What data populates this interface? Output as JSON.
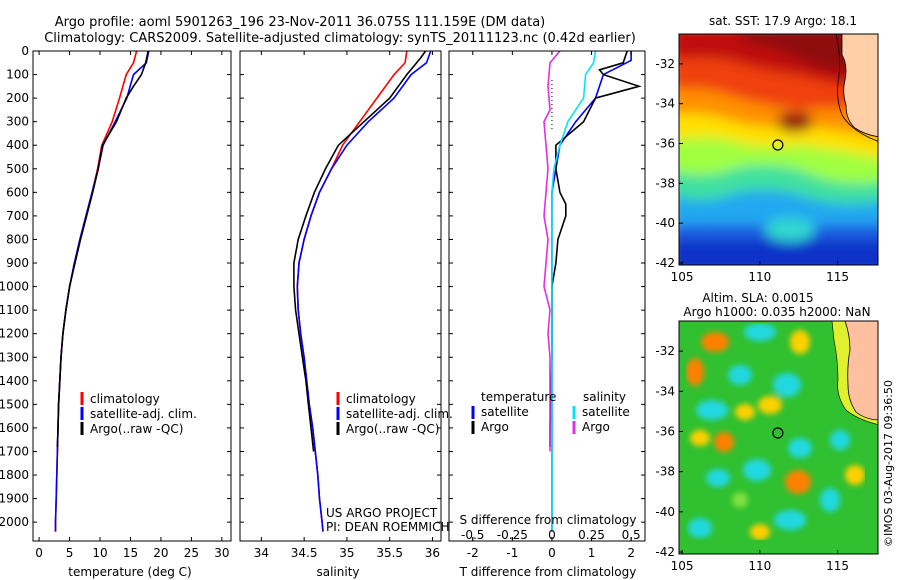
{
  "header": {
    "line1": "Argo profile: aoml 5901263_196 23-Nov-2011 36.075S 111.159E (DM data)",
    "line2": "Climatology: CARS2009. Satellite-adjusted climatology: synTS_20111123.nc (0.42d earlier)"
  },
  "colors": {
    "climatology": "#ff0000",
    "satellite": "#0000ff",
    "argo": "#000000",
    "salinity_sat": "#00e5ff",
    "salinity_argo": "#e030e0"
  },
  "chart_data": [
    {
      "type": "line",
      "id": "temperature",
      "xlabel": "temperature (deg C)",
      "ylabel": "",
      "xlim": [
        -1,
        31.5
      ],
      "ylim": [
        2080,
        0
      ],
      "xticks": [
        0,
        5,
        10,
        15,
        20,
        25,
        30
      ],
      "yticks": [
        0,
        100,
        200,
        300,
        400,
        500,
        600,
        700,
        800,
        900,
        1000,
        1100,
        1200,
        1300,
        1400,
        1500,
        1600,
        1700,
        1800,
        1900,
        2000
      ],
      "legend": {
        "position": "lower-center",
        "entries": [
          "climatology",
          "satellite-adj. clim.",
          "Argo(..raw -QC)"
        ]
      },
      "series": [
        {
          "name": "climatology",
          "color": "#ff0000",
          "points": [
            [
              16.0,
              0
            ],
            [
              15.5,
              50
            ],
            [
              14.3,
              100
            ],
            [
              13.2,
              200
            ],
            [
              12.0,
              300
            ],
            [
              10.3,
              400
            ],
            [
              9.6,
              500
            ],
            [
              8.7,
              600
            ],
            [
              7.7,
              700
            ],
            [
              6.7,
              800
            ],
            [
              5.8,
              900
            ],
            [
              5.0,
              1000
            ],
            [
              4.4,
              1100
            ],
            [
              3.9,
              1200
            ],
            [
              3.6,
              1300
            ],
            [
              3.4,
              1400
            ],
            [
              3.2,
              1500
            ],
            [
              3.1,
              1600
            ],
            [
              3.0,
              1700
            ],
            [
              2.9,
              1800
            ],
            [
              2.8,
              1900
            ],
            [
              2.7,
              2000
            ],
            [
              2.7,
              2040
            ]
          ]
        },
        {
          "name": "satellite-adj. clim.",
          "color": "#0000ff",
          "points": [
            [
              18.0,
              0
            ],
            [
              17.6,
              50
            ],
            [
              15.5,
              100
            ],
            [
              14.4,
              200
            ],
            [
              12.5,
              300
            ],
            [
              10.5,
              400
            ],
            [
              9.7,
              500
            ],
            [
              8.7,
              600
            ],
            [
              7.7,
              700
            ],
            [
              6.7,
              800
            ],
            [
              5.8,
              900
            ],
            [
              5.0,
              1000
            ],
            [
              4.4,
              1100
            ],
            [
              3.9,
              1200
            ],
            [
              3.6,
              1300
            ],
            [
              3.4,
              1400
            ],
            [
              3.2,
              1500
            ],
            [
              3.1,
              1600
            ],
            [
              3.0,
              1700
            ],
            [
              2.9,
              1800
            ],
            [
              2.8,
              1900
            ],
            [
              2.7,
              2000
            ],
            [
              2.7,
              2040
            ]
          ]
        },
        {
          "name": "Argo(..raw -QC)",
          "color": "#000000",
          "points": [
            [
              17.9,
              0
            ],
            [
              17.5,
              50
            ],
            [
              16.8,
              100
            ],
            [
              15.5,
              150
            ],
            [
              14.3,
              200
            ],
            [
              12.7,
              300
            ],
            [
              10.4,
              400
            ],
            [
              9.7,
              500
            ],
            [
              8.8,
              600
            ],
            [
              7.8,
              700
            ],
            [
              6.8,
              800
            ],
            [
              5.9,
              900
            ],
            [
              5.0,
              1000
            ],
            [
              4.4,
              1100
            ],
            [
              3.9,
              1200
            ],
            [
              3.6,
              1300
            ],
            [
              3.4,
              1400
            ],
            [
              3.2,
              1500
            ],
            [
              3.1,
              1600
            ],
            [
              3.0,
              1680
            ]
          ]
        }
      ]
    },
    {
      "type": "line",
      "id": "salinity",
      "xlabel": "salinity",
      "ylabel": "",
      "xlim": [
        33.75,
        36.1
      ],
      "ylim": [
        2080,
        0
      ],
      "xticks": [
        34,
        34.5,
        35,
        35.5,
        36
      ],
      "legend": {
        "position": "lower-center",
        "entries": [
          "climatology",
          "satellite-adj. clim.",
          "Argo(..raw -QC)"
        ]
      },
      "annotation": [
        "US ARGO PROJECT",
        "PI: DEAN ROEMMICH"
      ],
      "series": [
        {
          "name": "climatology",
          "color": "#ff0000",
          "points": [
            [
              35.7,
              0
            ],
            [
              35.68,
              50
            ],
            [
              35.55,
              100
            ],
            [
              35.35,
              200
            ],
            [
              35.15,
              300
            ],
            [
              34.95,
              400
            ],
            [
              34.82,
              500
            ],
            [
              34.68,
              600
            ],
            [
              34.58,
              700
            ],
            [
              34.5,
              800
            ],
            [
              34.44,
              900
            ],
            [
              34.42,
              1000
            ],
            [
              34.43,
              1100
            ],
            [
              34.46,
              1200
            ],
            [
              34.5,
              1300
            ],
            [
              34.53,
              1400
            ],
            [
              34.56,
              1500
            ],
            [
              34.6,
              1600
            ],
            [
              34.63,
              1700
            ],
            [
              34.66,
              1800
            ],
            [
              34.68,
              1900
            ],
            [
              34.71,
              2000
            ],
            [
              34.72,
              2040
            ]
          ]
        },
        {
          "name": "satellite-adj. clim.",
          "color": "#0000ff",
          "points": [
            [
              35.98,
              0
            ],
            [
              35.93,
              50
            ],
            [
              35.75,
              100
            ],
            [
              35.55,
              200
            ],
            [
              35.25,
              300
            ],
            [
              35.0,
              400
            ],
            [
              34.82,
              500
            ],
            [
              34.68,
              600
            ],
            [
              34.58,
              700
            ],
            [
              34.5,
              800
            ],
            [
              34.44,
              900
            ],
            [
              34.42,
              1000
            ],
            [
              34.43,
              1100
            ],
            [
              34.46,
              1200
            ],
            [
              34.5,
              1300
            ],
            [
              34.53,
              1400
            ],
            [
              34.56,
              1500
            ],
            [
              34.6,
              1600
            ],
            [
              34.63,
              1700
            ],
            [
              34.66,
              1800
            ],
            [
              34.68,
              1900
            ],
            [
              34.71,
              2000
            ],
            [
              34.72,
              2040
            ]
          ]
        },
        {
          "name": "Argo(..raw -QC)",
          "color": "#000000",
          "points": [
            [
              35.92,
              0
            ],
            [
              35.86,
              30
            ],
            [
              35.7,
              100
            ],
            [
              35.5,
              200
            ],
            [
              35.2,
              300
            ],
            [
              34.9,
              400
            ],
            [
              34.75,
              500
            ],
            [
              34.62,
              600
            ],
            [
              34.52,
              700
            ],
            [
              34.43,
              800
            ],
            [
              34.38,
              900
            ],
            [
              34.38,
              1000
            ],
            [
              34.4,
              1100
            ],
            [
              34.44,
              1200
            ],
            [
              34.48,
              1300
            ],
            [
              34.52,
              1400
            ],
            [
              34.55,
              1500
            ],
            [
              34.58,
              1600
            ],
            [
              34.61,
              1700
            ]
          ]
        }
      ]
    },
    {
      "type": "line",
      "id": "differences",
      "xlabel": "T difference from climatology",
      "xlabel_top": "S difference from climatology",
      "ylabel": "",
      "xlim": [
        -2.6,
        2.35
      ],
      "ylim": [
        2080,
        0
      ],
      "xticks": [
        -2,
        -1,
        0,
        1,
        2
      ],
      "xticklabels_s": [
        "-0.5",
        "-0.25",
        "0",
        "0.25",
        "0.5"
      ],
      "legend": {
        "position": "lower-center",
        "group_titles": [
          "temperature",
          "salinity"
        ],
        "entries": [
          "satellite",
          "Argo",
          "satellite",
          "Argo"
        ]
      },
      "series": [
        {
          "name": "temperature satellite",
          "color": "#0000ff",
          "points": [
            [
              2.0,
              0
            ],
            [
              2.0,
              40
            ],
            [
              1.3,
              100
            ],
            [
              1.1,
              200
            ],
            [
              0.6,
              300
            ],
            [
              0.2,
              400
            ],
            [
              0.1,
              500
            ],
            [
              0.0,
              600
            ],
            [
              0.0,
              800
            ],
            [
              0.0,
              1000
            ],
            [
              0.0,
              1500
            ],
            [
              0.0,
              2040
            ]
          ]
        },
        {
          "name": "temperature Argo",
          "color": "#000000",
          "points": [
            [
              1.9,
              0
            ],
            [
              1.8,
              50
            ],
            [
              1.2,
              80
            ],
            [
              1.3,
              100
            ],
            [
              2.2,
              150
            ],
            [
              1.1,
              200
            ],
            [
              0.8,
              300
            ],
            [
              0.1,
              400
            ],
            [
              0.1,
              500
            ],
            [
              0.2,
              600
            ],
            [
              0.35,
              650
            ],
            [
              0.35,
              700
            ],
            [
              0.15,
              800
            ],
            [
              0.1,
              900
            ],
            [
              0.0,
              1000
            ],
            [
              0.0,
              1100
            ],
            [
              0.0,
              1300
            ],
            [
              -0.05,
              1600
            ],
            [
              -0.05,
              1680
            ]
          ]
        },
        {
          "name": "salinity satellite",
          "color": "#00e5ff",
          "points": [
            [
              1.1,
              0
            ],
            [
              1.05,
              50
            ],
            [
              0.85,
              100
            ],
            [
              0.8,
              200
            ],
            [
              0.4,
              300
            ],
            [
              0.2,
              400
            ],
            [
              0.05,
              500
            ],
            [
              0.0,
              600
            ],
            [
              0.0,
              800
            ],
            [
              0.0,
              2040
            ]
          ]
        },
        {
          "name": "salinity Argo",
          "color": "#e030e0",
          "points": [
            [
              0.2,
              0
            ],
            [
              -0.05,
              50
            ],
            [
              -0.1,
              150
            ],
            [
              -0.05,
              250
            ],
            [
              -0.2,
              300
            ],
            [
              -0.15,
              400
            ],
            [
              -0.1,
              500
            ],
            [
              -0.15,
              600
            ],
            [
              -0.2,
              700
            ],
            [
              -0.1,
              800
            ],
            [
              -0.15,
              900
            ],
            [
              -0.2,
              1000
            ],
            [
              -0.05,
              1100
            ],
            [
              -0.1,
              1200
            ],
            [
              -0.05,
              1300
            ],
            [
              -0.05,
              1500
            ],
            [
              -0.05,
              1700
            ]
          ]
        }
      ]
    },
    {
      "type": "heatmap",
      "id": "sst_map",
      "title": "sat. SST: 17.9  Argo: 18.1",
      "xticks": [
        105,
        110,
        115
      ],
      "yticks": [
        -32,
        -34,
        -36,
        -38,
        -40,
        -42
      ],
      "xlim": [
        104.8,
        117.6
      ],
      "ylim": [
        -42.1,
        -30.5
      ],
      "float_position": [
        111.159,
        -36.075
      ]
    },
    {
      "type": "heatmap",
      "id": "sla_map",
      "title": "Altim. SLA: 0.0015",
      "subtitle": "Argo h1000: 0.035  h2000: NaN",
      "xticks": [
        105,
        110,
        115
      ],
      "yticks": [
        -32,
        -34,
        -36,
        -38,
        -40,
        -42
      ],
      "xlim": [
        104.8,
        117.6
      ],
      "ylim": [
        -42.1,
        -30.5
      ],
      "float_position": [
        111.159,
        -36.075
      ]
    }
  ],
  "credit": "©IMOS 03-Aug-2017 09:36:50"
}
